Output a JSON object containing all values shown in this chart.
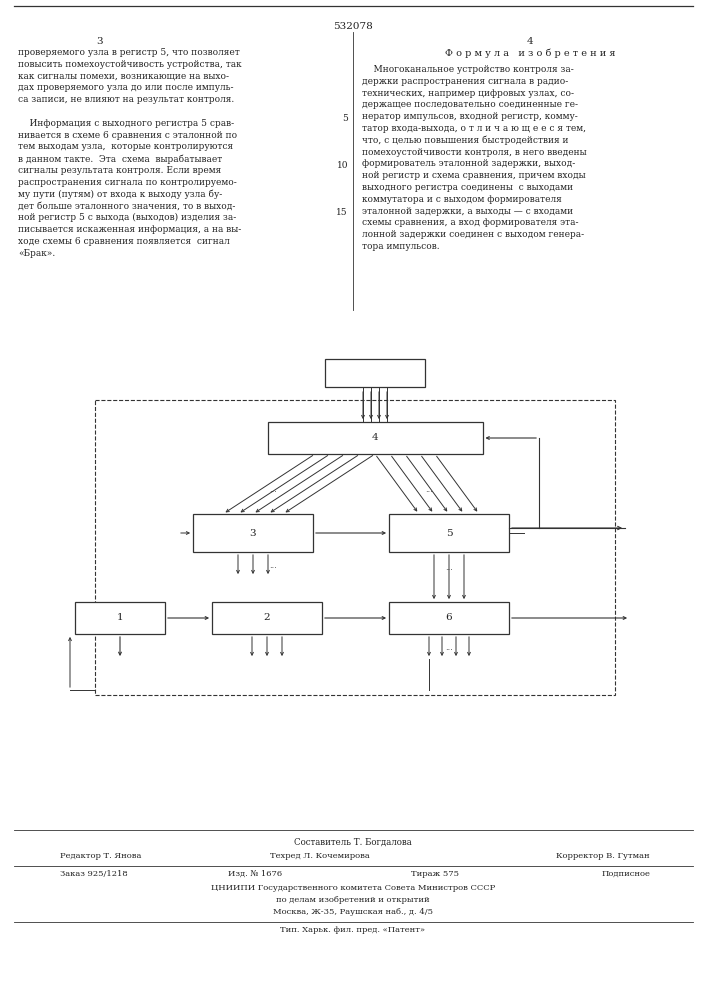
{
  "page_number": "532078",
  "col_left": "3",
  "col_right": "4",
  "section_title": "Ф о р м у л а   и з о б р е т е н и я",
  "left_text_lines": [
    "проверяемого узла в регистр 5, что позволяет",
    "повысить помехоустойчивость устройства, так",
    "как сигналы помехи, возникающие на выхо-",
    "дах проверяемого узла до или после импуль-",
    "са записи, не влияют на результат контроля.",
    "",
    "    Информация с выходного регистра 5 срав-",
    "нивается в схеме 6 сравнения с эталонной по",
    "тем выходам узла,  которые контролируются",
    "в данном такте.  Эта  схема  вырабатывает",
    "сигналы результата контроля. Если время",
    "распространения сигнала по контролируемо-",
    "му пути (путям) от входа к выходу узла бу-",
    "дет больше эталонного значения, то в выход-",
    "ной регистр 5 с выхода (выходов) изделия за-",
    "писывается искаженная информация, а на вы-",
    "ходе схемы 6 сравнения появляется  сигнал",
    "«Брак»."
  ],
  "right_text_lines": [
    "    Многоканальное устройство контроля за-",
    "держки распространения сигнала в радио-",
    "технических, например цифровых узлах, со-",
    "держащее последовательно соединенные ге-",
    "нератор импульсов, входной регистр, комму-",
    "татор входа-выхода, о т л и ч а ю щ е е с я тем,",
    "что, с целью повышения быстродействия и",
    "помехоустойчивости контроля, в него введены",
    "формирователь эталонной задержки, выход-",
    "ной регистр и схема сравнения, причем входы",
    "выходного регистра соединены  с выходами",
    "коммутатора и с выходом формирователя",
    "эталонной задержки, а выходы — с входами",
    "схемы сравнения, а вход формирователя эта-",
    "лонной задержки соединен с выходом генера-",
    "тора импульсов."
  ],
  "line_numbers_right": [
    "",
    "",
    "",
    "",
    "5",
    "",
    "",
    "",
    "10",
    "",
    "",
    "",
    "15",
    "",
    "",
    ""
  ],
  "footer_author": "Составитель Т. Богдалова",
  "footer_editor": "Редактор Т. Янова",
  "footer_tech": "Техред Л. Кочемирова",
  "footer_corrector": "Корректор В. Гутман",
  "footer_order": "Заказ 925/1218",
  "footer_issue": "Изд. № 1676",
  "footer_print": "Тираж 575",
  "footer_subscription": "Подписное",
  "footer_org": "ЦНИИПИ Государственного комитета Совета Министров СССР",
  "footer_org2": "по делам изобретений и открытий",
  "footer_addr": "Москва, Ж-35, Раушская наб., д. 4/5",
  "footer_printer": "Тип. Харьк. фил. пред. «Патент»",
  "bg_color": "#ffffff",
  "text_color": "#222222",
  "line_color": "#333333"
}
